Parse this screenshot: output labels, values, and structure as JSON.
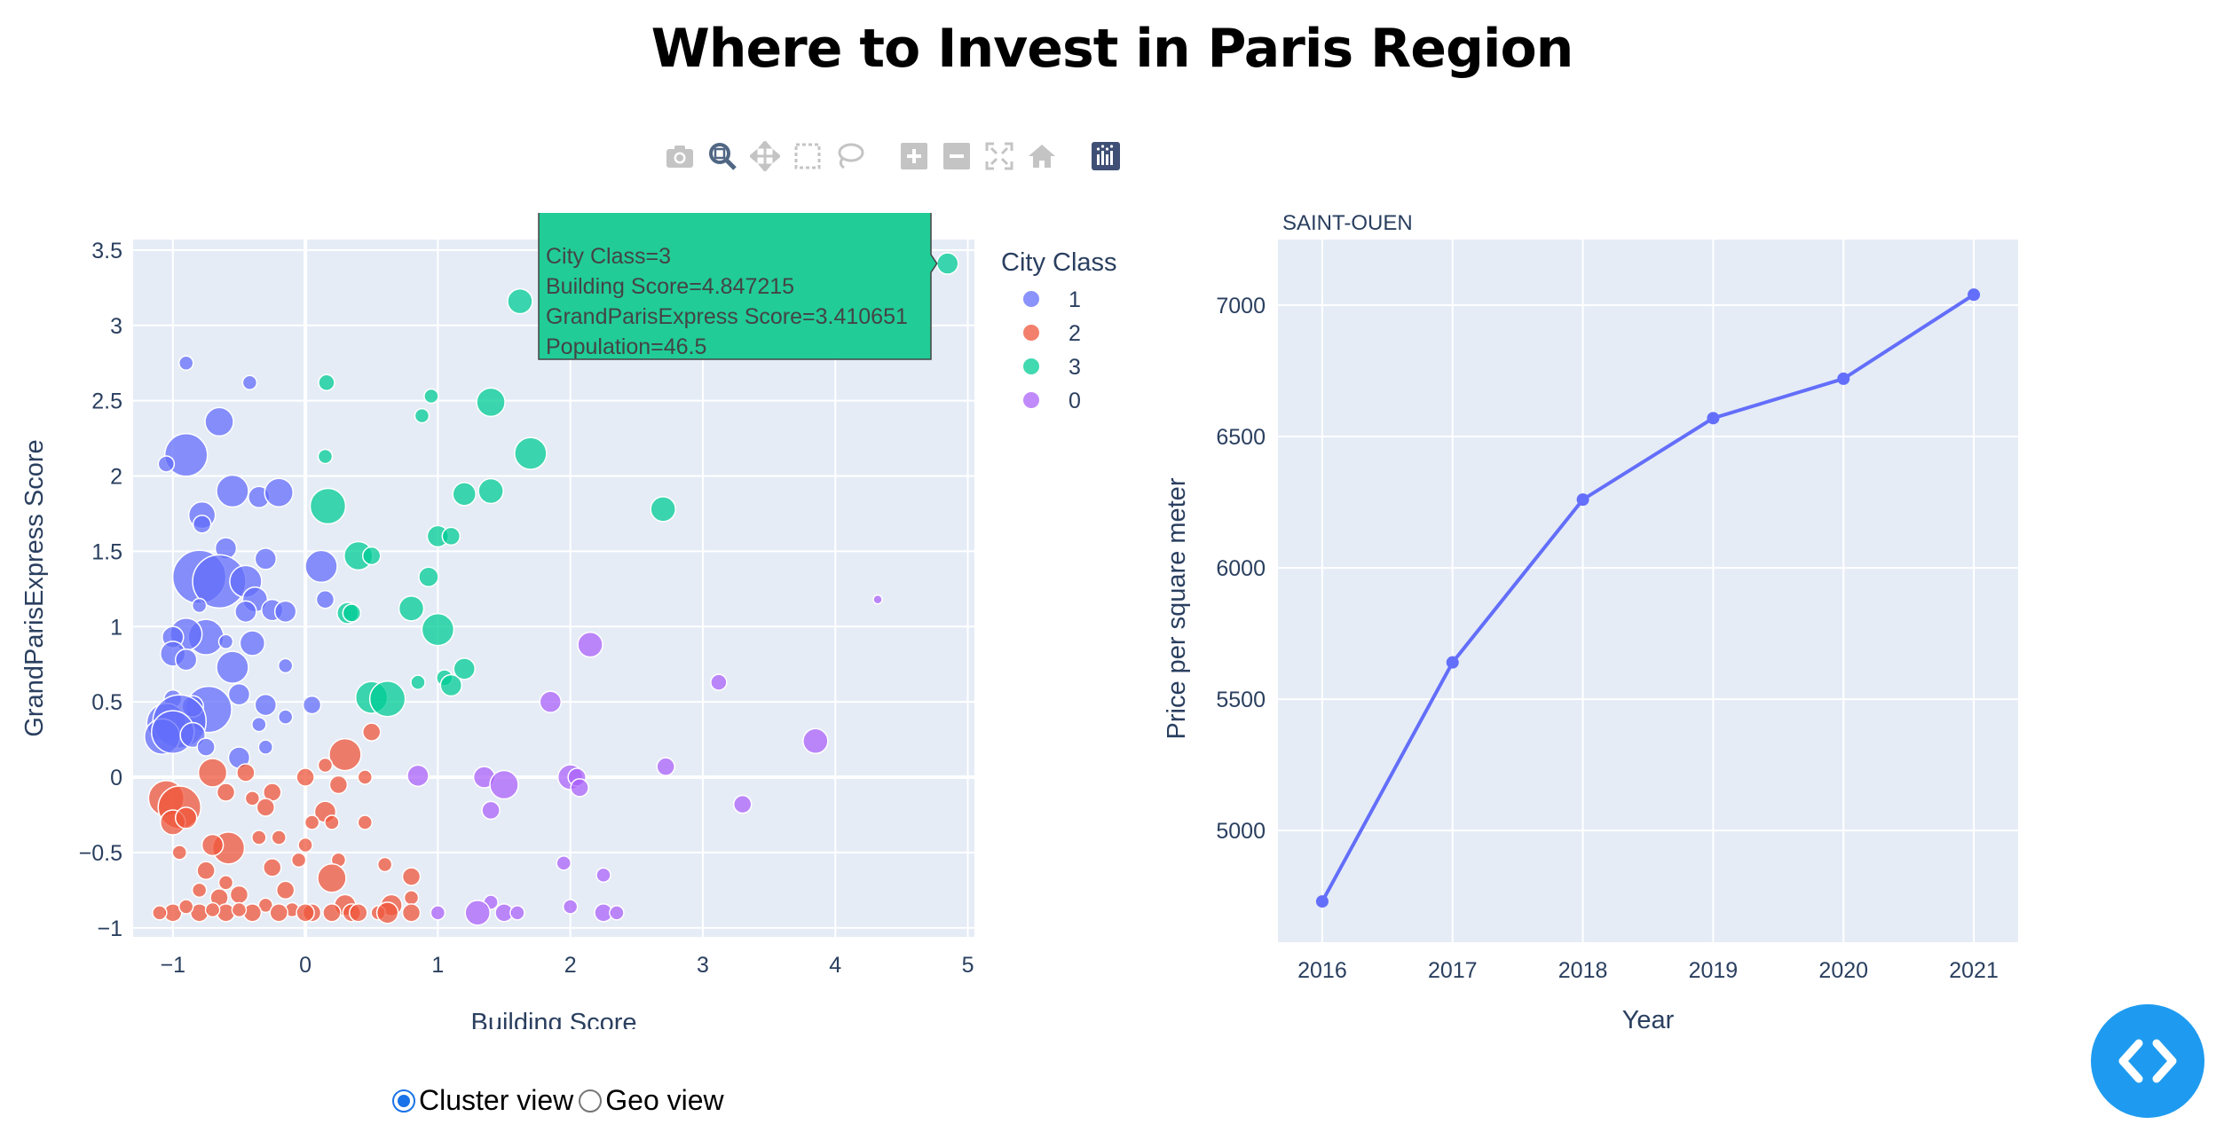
{
  "page": {
    "title": "Where to Invest in Paris Region"
  },
  "modebar": {
    "icons": [
      "camera-icon",
      "zoom-icon",
      "pan-icon",
      "box-select-icon",
      "lasso-select-icon",
      "zoom-in-icon",
      "zoom-out-icon",
      "autoscale-icon",
      "reset-axes-icon",
      "plotly-logo-icon"
    ]
  },
  "view_toggle": {
    "options": [
      "Cluster view",
      "Geo view"
    ],
    "selected": "Cluster view"
  },
  "tooltip": {
    "title": "SAINT-OUEN",
    "lines": [
      "City Class=3",
      "Building Score=4.847215",
      "GrandParisExpress Score=3.410651",
      "Population=46.5"
    ],
    "color": "#21cc97"
  },
  "chart_data": [
    {
      "type": "scatter",
      "xlabel": "Building Score",
      "ylabel": "GrandParisExpress Score",
      "xlim": [
        -1.3,
        5.05
      ],
      "ylim": [
        -1.06,
        3.57
      ],
      "xticks": [
        -1,
        0,
        1,
        2,
        3,
        4,
        5
      ],
      "yticks": [
        -1,
        -0.5,
        0,
        0.5,
        1,
        1.5,
        2,
        2.5,
        3,
        3.5
      ],
      "ytick_labels": [
        "−1",
        "−0.5",
        "0",
        "0.5",
        "1",
        "1.5",
        "2",
        "2.5",
        "3",
        "3.5"
      ],
      "grid": true,
      "legend": {
        "title": "City Class",
        "placement": "right"
      },
      "size_field": "Population",
      "series": [
        {
          "name": "1",
          "color": "#636efa",
          "points": [
            [
              -0.9,
              2.75,
              8
            ],
            [
              -0.42,
              2.62,
              8
            ],
            [
              -0.65,
              2.36,
              16
            ],
            [
              -0.9,
              2.14,
              24
            ],
            [
              -1.05,
              2.08,
              9
            ],
            [
              -0.55,
              1.9,
              18
            ],
            [
              -0.35,
              1.86,
              12
            ],
            [
              -0.2,
              1.89,
              16
            ],
            [
              -0.78,
              1.74,
              15
            ],
            [
              -0.78,
              1.68,
              10
            ],
            [
              -0.6,
              1.52,
              12
            ],
            [
              -0.3,
              1.45,
              12
            ],
            [
              -0.8,
              1.33,
              30
            ],
            [
              -0.65,
              1.3,
              30
            ],
            [
              -0.45,
              1.3,
              18
            ],
            [
              0.12,
              1.4,
              18
            ],
            [
              -0.38,
              1.18,
              14
            ],
            [
              -0.45,
              1.1,
              12
            ],
            [
              -0.25,
              1.11,
              12
            ],
            [
              -0.15,
              1.1,
              12
            ],
            [
              -0.8,
              1.14,
              8
            ],
            [
              0.15,
              1.18,
              10
            ],
            [
              -0.75,
              0.93,
              20
            ],
            [
              -0.9,
              0.95,
              18
            ],
            [
              -1.0,
              0.93,
              12
            ],
            [
              -0.6,
              0.9,
              8
            ],
            [
              -1.0,
              0.82,
              14
            ],
            [
              -0.9,
              0.78,
              12
            ],
            [
              -0.4,
              0.89,
              14
            ],
            [
              -0.55,
              0.73,
              18
            ],
            [
              -0.15,
              0.74,
              8
            ],
            [
              -0.73,
              0.45,
              26
            ],
            [
              -1.0,
              0.52,
              10
            ],
            [
              -0.85,
              0.47,
              12
            ],
            [
              -1.05,
              0.36,
              22
            ],
            [
              -0.95,
              0.37,
              30
            ],
            [
              -1.08,
              0.27,
              20
            ],
            [
              -1.0,
              0.3,
              24
            ],
            [
              -0.85,
              0.28,
              14
            ],
            [
              -0.5,
              0.55,
              12
            ],
            [
              -0.3,
              0.48,
              12
            ],
            [
              -0.35,
              0.35,
              8
            ],
            [
              -0.3,
              0.2,
              8
            ],
            [
              -0.15,
              0.4,
              8
            ],
            [
              -0.5,
              0.13,
              12
            ],
            [
              0.05,
              0.48,
              10
            ],
            [
              -0.75,
              0.2,
              10
            ]
          ]
        },
        {
          "name": "2",
          "color": "#ef553b",
          "points": [
            [
              -1.05,
              -0.14,
              20
            ],
            [
              -0.95,
              -0.2,
              24
            ],
            [
              -1.0,
              -0.3,
              14
            ],
            [
              -0.9,
              -0.27,
              12
            ],
            [
              -0.7,
              0.03,
              16
            ],
            [
              -0.6,
              -0.1,
              10
            ],
            [
              -0.45,
              0.03,
              10
            ],
            [
              -0.58,
              -0.47,
              18
            ],
            [
              -0.7,
              -0.45,
              12
            ],
            [
              0.3,
              0.15,
              18
            ],
            [
              -0.4,
              -0.14,
              8
            ],
            [
              -0.25,
              -0.1,
              10
            ],
            [
              0.0,
              0.0,
              10
            ],
            [
              0.15,
              0.08,
              8
            ],
            [
              0.25,
              -0.05,
              10
            ],
            [
              0.15,
              -0.23,
              12
            ],
            [
              0.45,
              0.0,
              8
            ],
            [
              0.5,
              0.3,
              10
            ],
            [
              0.2,
              -0.3,
              8
            ],
            [
              0.45,
              -0.3,
              8
            ],
            [
              -0.35,
              -0.4,
              8
            ],
            [
              -0.2,
              -0.4,
              8
            ],
            [
              -0.05,
              -0.55,
              8
            ],
            [
              0.0,
              -0.45,
              8
            ],
            [
              0.25,
              -0.55,
              8
            ],
            [
              -0.65,
              -0.8,
              10
            ],
            [
              -0.5,
              -0.78,
              10
            ],
            [
              -0.25,
              -0.6,
              10
            ],
            [
              0.2,
              -0.67,
              16
            ],
            [
              0.8,
              -0.66,
              10
            ],
            [
              0.6,
              -0.58,
              8
            ],
            [
              0.8,
              -0.8,
              8
            ],
            [
              -0.6,
              -0.7,
              8
            ],
            [
              -0.8,
              -0.75,
              8
            ],
            [
              0.3,
              -0.85,
              12
            ],
            [
              0.65,
              -0.85,
              12
            ],
            [
              -0.3,
              -0.85,
              8
            ],
            [
              -0.1,
              -0.88,
              8
            ],
            [
              0.05,
              -0.9,
              10
            ],
            [
              0.35,
              -0.9,
              10
            ],
            [
              0.55,
              -0.9,
              8
            ],
            [
              0.62,
              -0.9,
              12
            ],
            [
              0.8,
              -0.9,
              10
            ],
            [
              -1.0,
              -0.9,
              10
            ],
            [
              -0.8,
              -0.9,
              10
            ],
            [
              -0.6,
              -0.9,
              10
            ],
            [
              -0.4,
              -0.9,
              10
            ],
            [
              -0.2,
              -0.9,
              10
            ],
            [
              0.0,
              -0.9,
              10
            ],
            [
              0.2,
              -0.9,
              10
            ],
            [
              0.4,
              -0.9,
              10
            ],
            [
              -0.9,
              -0.86,
              8
            ],
            [
              -0.7,
              -0.88,
              8
            ],
            [
              -0.5,
              -0.88,
              8
            ],
            [
              -1.1,
              -0.9,
              8
            ],
            [
              -0.75,
              -0.62,
              10
            ],
            [
              -0.95,
              -0.5,
              8
            ],
            [
              -0.3,
              -0.2,
              10
            ],
            [
              0.05,
              -0.3,
              8
            ],
            [
              -0.15,
              -0.75,
              10
            ]
          ]
        },
        {
          "name": "3",
          "color": "#00cc96",
          "points": [
            [
              4.847215,
              3.410651,
              12
            ],
            [
              1.62,
              3.16,
              14
            ],
            [
              0.16,
              2.62,
              9
            ],
            [
              0.95,
              2.53,
              8
            ],
            [
              0.88,
              2.4,
              8
            ],
            [
              1.4,
              2.49,
              16
            ],
            [
              1.7,
              2.15,
              18
            ],
            [
              0.15,
              2.13,
              8
            ],
            [
              1.2,
              1.88,
              13
            ],
            [
              1.4,
              1.9,
              14
            ],
            [
              0.17,
              1.8,
              20
            ],
            [
              2.7,
              1.78,
              14
            ],
            [
              1.0,
              1.6,
              12
            ],
            [
              1.1,
              1.6,
              10
            ],
            [
              0.4,
              1.47,
              16
            ],
            [
              0.5,
              1.47,
              10
            ],
            [
              0.93,
              1.33,
              11
            ],
            [
              0.32,
              1.09,
              12
            ],
            [
              0.35,
              1.09,
              10
            ],
            [
              0.8,
              1.12,
              14
            ],
            [
              1.0,
              0.98,
              18
            ],
            [
              1.05,
              0.66,
              9
            ],
            [
              1.1,
              0.61,
              12
            ],
            [
              1.2,
              0.72,
              12
            ],
            [
              0.5,
              0.53,
              18
            ],
            [
              0.62,
              0.52,
              20
            ],
            [
              0.85,
              0.63,
              8
            ]
          ]
        },
        {
          "name": "0",
          "color": "#ab63fa",
          "points": [
            [
              4.32,
              1.18,
              5
            ],
            [
              2.15,
              0.88,
              14
            ],
            [
              1.85,
              0.5,
              12
            ],
            [
              3.12,
              0.63,
              9
            ],
            [
              3.85,
              0.24,
              14
            ],
            [
              0.85,
              0.01,
              12
            ],
            [
              1.35,
              0.0,
              12
            ],
            [
              1.5,
              -0.05,
              16
            ],
            [
              2.0,
              0.0,
              14
            ],
            [
              2.05,
              0.0,
              10
            ],
            [
              2.07,
              -0.07,
              10
            ],
            [
              2.72,
              0.07,
              10
            ],
            [
              3.3,
              -0.18,
              10
            ],
            [
              1.4,
              -0.22,
              10
            ],
            [
              1.95,
              -0.57,
              8
            ],
            [
              2.25,
              -0.65,
              8
            ],
            [
              1.4,
              -0.83,
              8
            ],
            [
              1.5,
              -0.9,
              10
            ],
            [
              1.3,
              -0.9,
              14
            ],
            [
              1.6,
              -0.9,
              8
            ],
            [
              2.0,
              -0.86,
              8
            ],
            [
              2.25,
              -0.9,
              10
            ],
            [
              2.35,
              -0.9,
              8
            ],
            [
              1.0,
              -0.9,
              8
            ]
          ]
        }
      ]
    },
    {
      "type": "line",
      "title": "SAINT-OUEN",
      "xlabel": "Year",
      "ylabel": "Price per square meter",
      "x": [
        2016,
        2017,
        2018,
        2019,
        2020,
        2021
      ],
      "y": [
        4730,
        5640,
        6260,
        6570,
        6720,
        7040
      ],
      "xlim": [
        2015.66,
        2021.34
      ],
      "ylim": [
        4575,
        7250
      ],
      "yticks": [
        5000,
        5500,
        6000,
        6500,
        7000
      ],
      "color": "#636efa",
      "grid": true
    }
  ]
}
